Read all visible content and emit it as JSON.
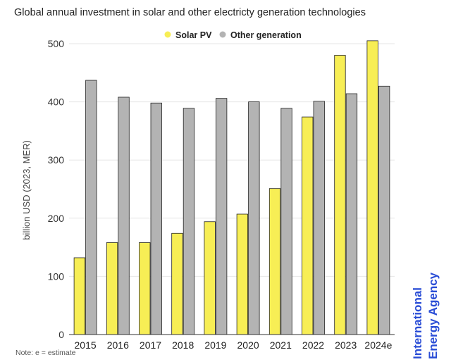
{
  "title": "Global annual investment in solar and other electricty generation technologies",
  "note": "Note: e = estimate",
  "brand_text": "International Energy Agency",
  "colors": {
    "solar": "#f7ee55",
    "other": "#b3b3b3",
    "bar_stroke": "#222222",
    "grid": "#e6e6e6",
    "axis": "#333333",
    "brand": "#2a4dd6"
  },
  "chart_data": {
    "type": "bar",
    "title": "Global annual investment in solar and other electricty generation technologies",
    "ylabel": "billion USD (2023, MER)",
    "xlabel": "",
    "ylim": [
      0,
      500
    ],
    "yticks": [
      0,
      100,
      200,
      300,
      400,
      500
    ],
    "grid": true,
    "legend_position": "top-center",
    "categories": [
      "2015",
      "2016",
      "2017",
      "2018",
      "2019",
      "2020",
      "2021",
      "2022",
      "2023",
      "2024e"
    ],
    "series": [
      {
        "name": "Solar PV",
        "values": [
          132,
          158,
          158,
          174,
          194,
          207,
          251,
          374,
          480,
          505
        ]
      },
      {
        "name": "Other generation",
        "values": [
          437,
          408,
          398,
          389,
          406,
          400,
          389,
          401,
          414,
          427
        ]
      }
    ]
  }
}
